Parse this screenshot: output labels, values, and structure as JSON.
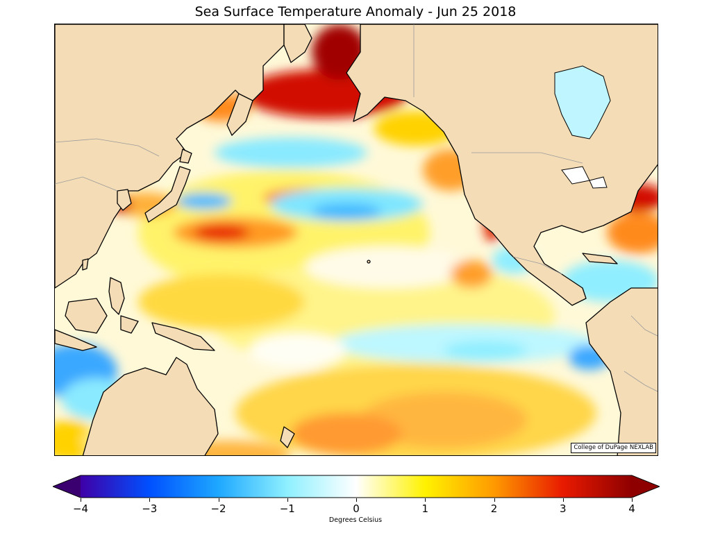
{
  "title": "Sea Surface Temperature Anomaly - Jun 25 2018",
  "credit": "College of DuPage NEXLAB",
  "colorbar": {
    "label": "Degrees Celsius",
    "min": -4,
    "max": 4,
    "ticks": [
      "−4",
      "−3",
      "−2",
      "−1",
      "0",
      "1",
      "2",
      "3",
      "4"
    ],
    "tick_values": [
      -4,
      -3,
      -2,
      -1,
      0,
      1,
      2,
      3,
      4
    ],
    "extend": "both",
    "colors": {
      "low_extend": "#3a0070",
      "minus4": "#3f00a8",
      "minus3": "#0050ff",
      "minus2": "#1ea8ff",
      "minus1": "#8ff0ff",
      "zero": "#ffffff",
      "plus1": "#fff200",
      "plus2": "#ff9a00",
      "plus3": "#e81a00",
      "plus4": "#8e0000",
      "high_extend": "#8e0000"
    }
  },
  "map": {
    "land_color": "#f4ddb6",
    "coast_color": "#000000",
    "border_color": "#9a9a9a",
    "ocean_base": "#fffbe0"
  }
}
